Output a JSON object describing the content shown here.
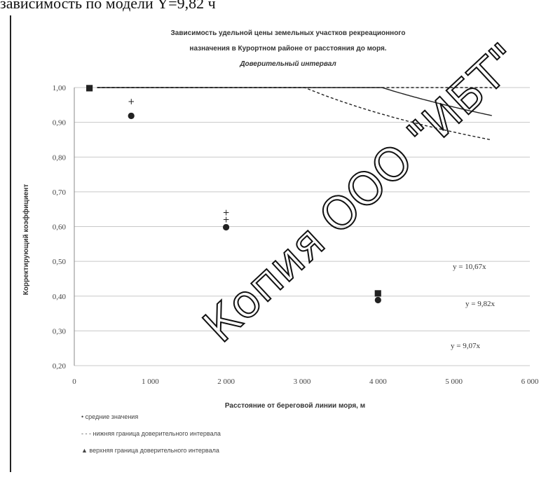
{
  "top_text": "зависимость по модели Y=9,82 ч",
  "watermark": "Копия ООО \"ИБТ\"",
  "chart_data": {
    "type": "line",
    "title_lines": [
      "Зависимость удельной цены земельных участков рекреационного",
      "назначения в Курортном районе от расстояния до моря.",
      "Доверительный интервал"
    ],
    "xlabel": "Расстояние от береговой линии моря, м",
    "ylabel": "Корректирующий коэффициент",
    "x_ticks": [
      "0",
      "1 000",
      "2 000",
      "3 000",
      "4 000",
      "5 000",
      "6 000"
    ],
    "y_ticks": [
      "1,00",
      "0,90",
      "0,80",
      "0,70",
      "0,60",
      "0,50",
      "0,40",
      "0,30",
      "0,20"
    ],
    "xlim": [
      0,
      6000
    ],
    "ylim": [
      0.2,
      1.0
    ],
    "grid": true,
    "series": [
      {
        "name": "upper",
        "a": 10.67,
        "b": -0.275,
        "dash": "4,3",
        "color": "#222"
      },
      {
        "name": "mid",
        "a": 9.82,
        "b": -0.275,
        "dash": "",
        "color": "#222"
      },
      {
        "name": "lower",
        "a": 9.07,
        "b": -0.275,
        "dash": "4,3",
        "color": "#222"
      }
    ],
    "equations": [
      "y = 10,67x",
      "y = 9,82x",
      "y = 9,07x"
    ],
    "points": [
      {
        "x": 200,
        "y": 1.0,
        "m": "■"
      },
      {
        "x": 750,
        "y": 0.96,
        "m": "+"
      },
      {
        "x": 750,
        "y": 0.92,
        "m": "●"
      },
      {
        "x": 2000,
        "y": 0.64,
        "m": "+"
      },
      {
        "x": 2000,
        "y": 0.62,
        "m": "+"
      },
      {
        "x": 2000,
        "y": 0.6,
        "m": "●"
      },
      {
        "x": 4000,
        "y": 0.41,
        "m": "■"
      },
      {
        "x": 4000,
        "y": 0.39,
        "m": "●"
      }
    ],
    "legend": [
      "• средние значения",
      "- - - нижняя граница доверительного интервала",
      "▲ верхняя граница доверительного интервала"
    ]
  }
}
